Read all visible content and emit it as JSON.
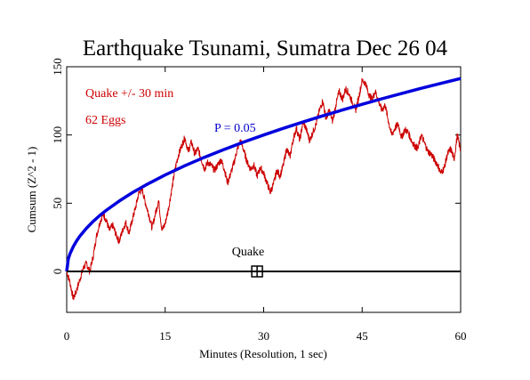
{
  "chart_data": {
    "type": "line",
    "title": "Earthquake Tsunami, Sumatra Dec 26 04",
    "xlabel": "Minutes (Resolution, 1 sec)",
    "ylabel": "Cumsum (Z^2 - 1)",
    "xlim": [
      0,
      60
    ],
    "ylim": [
      -30,
      150
    ],
    "xticks": [
      "0",
      "15",
      "30",
      "45",
      "60"
    ],
    "yticks": [
      "0",
      "50",
      "100",
      "150"
    ],
    "grid": false,
    "annotations": {
      "window": "Quake +/- 30 min",
      "eggs": "62 Eggs",
      "p_label": "P = 0.05",
      "event_label": "Quake",
      "event_x": 29
    },
    "series": [
      {
        "color": "#cc0000",
        "x": [
          0,
          0.5,
          1,
          1.5,
          2,
          2.5,
          3,
          3.5,
          4,
          4.5,
          5,
          5.5,
          6,
          6.5,
          7,
          7.5,
          8,
          8.5,
          9,
          9.5,
          10,
          10.5,
          11,
          11.5,
          12,
          12.5,
          13,
          13.5,
          14,
          14.5,
          15,
          15.5,
          16,
          16.5,
          17,
          17.5,
          18,
          18.5,
          19,
          19.5,
          20,
          20.5,
          21,
          21.5,
          22,
          22.5,
          23,
          23.5,
          24,
          24.5,
          25,
          25.5,
          26,
          26.5,
          27,
          27.5,
          28,
          28.5,
          29,
          29.5,
          30,
          30.5,
          31,
          31.5,
          32,
          32.5,
          33,
          33.5,
          34,
          34.5,
          35,
          35.5,
          36,
          36.5,
          37,
          37.5,
          38,
          38.5,
          39,
          39.5,
          40,
          40.5,
          41,
          41.5,
          42,
          42.5,
          43,
          43.5,
          44,
          44.5,
          45,
          45.5,
          46,
          46.5,
          47,
          47.5,
          48,
          48.5,
          49,
          49.5,
          50,
          50.5,
          51,
          51.5,
          52,
          52.5,
          53,
          53.5,
          54,
          54.5,
          55,
          55.5,
          56,
          56.5,
          57,
          57.5,
          58,
          58.5,
          59,
          59.5,
          60
        ],
        "values": [
          0,
          -8,
          -20,
          -14,
          -6,
          2,
          6,
          0,
          10,
          25,
          35,
          42,
          38,
          30,
          34,
          27,
          22,
          30,
          36,
          28,
          38,
          47,
          58,
          60,
          50,
          42,
          32,
          42,
          52,
          30,
          35,
          46,
          60,
          75,
          85,
          92,
          98,
          88,
          95,
          86,
          90,
          82,
          75,
          80,
          78,
          74,
          78,
          82,
          75,
          65,
          72,
          80,
          90,
          96,
          88,
          80,
          75,
          78,
          70,
          76,
          72,
          65,
          58,
          64,
          74,
          70,
          78,
          90,
          84,
          97,
          105,
          96,
          110,
          104,
          96,
          102,
          108,
          118,
          125,
          112,
          118,
          110,
          122,
          132,
          126,
          134,
          130,
          124,
          118,
          128,
          140,
          138,
          130,
          126,
          132,
          125,
          118,
          122,
          110,
          100,
          105,
          108,
          98,
          104,
          102,
          96,
          92,
          90,
          100,
          94,
          88,
          86,
          82,
          78,
          72,
          76,
          86,
          90,
          82,
          100,
          88
        ]
      },
      {
        "name": "P = 0.05",
        "color": "#0000dd",
        "x": [
          0,
          0.25,
          0.5,
          1,
          1.5,
          2,
          3,
          4,
          5,
          6,
          8,
          10,
          12,
          15,
          18,
          21,
          24,
          27,
          30,
          33,
          36,
          39,
          42,
          45,
          48,
          51,
          54,
          57,
          60
        ],
        "values": [
          0,
          9.1,
          12.9,
          18.2,
          22.3,
          25.8,
          31.6,
          36.5,
          40.8,
          44.7,
          51.6,
          57.7,
          63.2,
          70.7,
          77.5,
          83.7,
          89.4,
          94.9,
          100,
          104.9,
          109.5,
          114.0,
          118.3,
          122.5,
          126.5,
          130.4,
          134.2,
          137.8,
          141.4
        ]
      },
      {
        "color": "#000000",
        "x": [
          0,
          60
        ],
        "values": [
          0,
          0
        ]
      }
    ]
  }
}
